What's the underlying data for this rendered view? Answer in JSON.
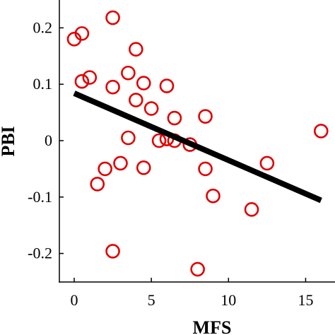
{
  "chart_data": {
    "type": "scatter",
    "title": "",
    "xlabel": "MFS",
    "ylabel": "PBI",
    "xlim": [
      -1,
      17
    ],
    "ylim": [
      -0.25,
      0.25
    ],
    "xticks": [
      0,
      5,
      10,
      15
    ],
    "xtick_labels": [
      "0",
      "5",
      "10",
      "15"
    ],
    "yticks": [
      -0.2,
      -0.1,
      0,
      0.1,
      0.2
    ],
    "ytick_labels": [
      "-0.2",
      "-0.1",
      "0",
      "0.1",
      "0.2"
    ],
    "grid": false,
    "legend": "none",
    "marker": "open-circle",
    "marker_color": "#e00000",
    "line_color": "#000000",
    "series": [
      {
        "x": [
          0,
          0.5,
          0.5,
          1,
          2.5,
          2.5,
          4,
          3.5,
          4,
          4.5,
          5,
          6,
          6.5,
          8.5,
          16,
          3.5,
          5.5,
          6,
          6.5,
          7.5,
          2,
          3,
          4.5,
          1.5,
          8.5,
          9,
          11.5,
          12.5,
          2.5,
          8
        ],
        "y": [
          0.18,
          0.19,
          0.105,
          0.112,
          0.218,
          0.095,
          0.162,
          0.12,
          0.072,
          0.102,
          0.057,
          0.097,
          0.04,
          0.043,
          0.017,
          0.005,
          0,
          0.003,
          0,
          -0.007,
          -0.05,
          -0.04,
          -0.048,
          -0.077,
          -0.05,
          -0.098,
          -0.122,
          -0.04,
          -0.196,
          -0.228
        ]
      }
    ],
    "fit_line": {
      "x": [
        0,
        16
      ],
      "y": [
        0.084,
        -0.106
      ]
    }
  }
}
